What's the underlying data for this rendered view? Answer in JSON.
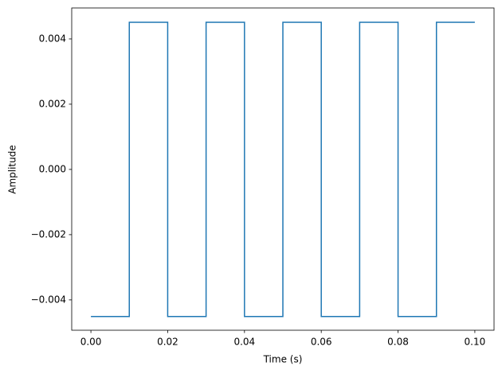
{
  "chart_data": {
    "type": "line",
    "xlabel": "Time (s)",
    "ylabel": "Amplitude",
    "x": [
      0,
      0.01,
      0.01,
      0.02,
      0.02,
      0.03,
      0.03,
      0.04,
      0.04,
      0.05,
      0.05,
      0.06,
      0.06,
      0.07,
      0.07,
      0.08,
      0.08,
      0.09,
      0.09,
      0.1
    ],
    "values": [
      -0.00451,
      -0.00451,
      0.00451,
      0.00451,
      -0.00451,
      -0.00451,
      0.00451,
      0.00451,
      -0.00451,
      -0.00451,
      0.00451,
      0.00451,
      -0.00451,
      -0.00451,
      0.00451,
      0.00451,
      -0.00451,
      -0.00451,
      0.00451,
      0.00451
    ],
    "color": "#1f77b4",
    "xlim": [
      -0.005,
      0.105
    ],
    "xticks": [
      {
        "value": 0,
        "label": "0.00"
      },
      0.02,
      0.04,
      0.06,
      0.08,
      {
        "value": 0.1,
        "label": "0.10"
      }
    ],
    "ylim": [
      -0.00493,
      0.00495
    ],
    "yticks": [
      {
        "value": -0.004,
        "label": "−0.004"
      },
      {
        "value": -0.002,
        "label": "−0.002"
      },
      {
        "value": 0,
        "label": "0.000"
      },
      0.002,
      0.004
    ]
  }
}
